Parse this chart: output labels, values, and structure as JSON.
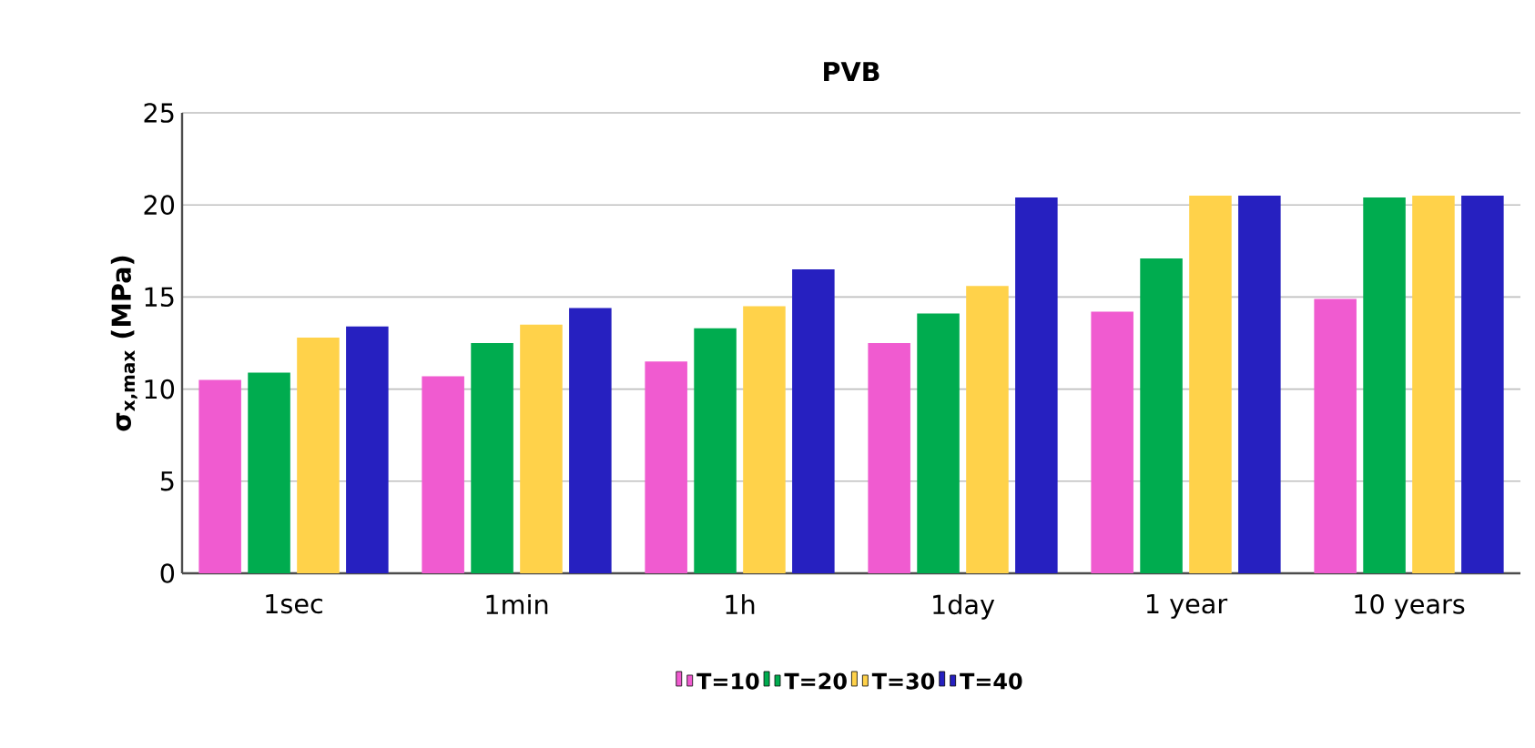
{
  "chart_data": {
    "type": "bar",
    "title": "PVB",
    "ylabel": "σ$_{x,max}$ (MPa)",
    "categories": [
      "1sec",
      "1min",
      "1h",
      "1day",
      "1 year",
      "10 years"
    ],
    "series": [
      {
        "name": "T=10",
        "color": "#f05bd0",
        "values": [
          10.5,
          10.7,
          11.5,
          12.5,
          14.2,
          14.9
        ]
      },
      {
        "name": "T=20",
        "color": "#00ac4f",
        "values": [
          10.9,
          12.5,
          13.3,
          14.1,
          17.1,
          20.4
        ]
      },
      {
        "name": "T=30",
        "color": "#ffd24a",
        "values": [
          12.8,
          13.5,
          14.5,
          15.6,
          20.5,
          20.5
        ]
      },
      {
        "name": "T=40",
        "color": "#2620c0",
        "values": [
          13.4,
          14.4,
          16.5,
          20.4,
          20.5,
          20.5
        ]
      }
    ],
    "ylim": [
      0,
      25
    ],
    "yticks": [
      0,
      5,
      10,
      15,
      20,
      25
    ],
    "grid": "y",
    "legend": "bottom"
  }
}
